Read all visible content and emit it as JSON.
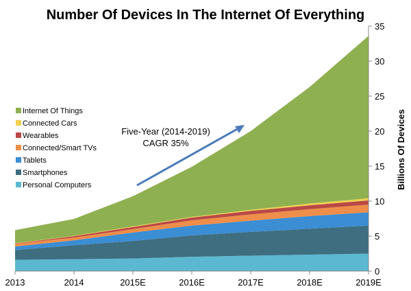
{
  "chart_data": {
    "type": "area",
    "stacked": true,
    "title": "Number Of Devices In The Internet Of Everything",
    "xlabel": "",
    "ylabel": "Billions Of Devices",
    "y_axis_position": "right",
    "ylim": [
      0,
      35
    ],
    "yticks": [
      0,
      5,
      10,
      15,
      20,
      25,
      30,
      35
    ],
    "grid": false,
    "legend_position": "left",
    "categories": [
      "2013",
      "2014",
      "2015E",
      "2016E",
      "2017E",
      "2018E",
      "2019E"
    ],
    "series": [
      {
        "name": "Personal Computers",
        "color": "#5bb8d0",
        "values": [
          1.6,
          1.7,
          1.8,
          2.05,
          2.2,
          2.35,
          2.5
        ]
      },
      {
        "name": "Smartphones",
        "color": "#3e6e80",
        "values": [
          1.4,
          2.0,
          2.5,
          3.05,
          3.4,
          3.7,
          4.0
        ]
      },
      {
        "name": "Tablets",
        "color": "#3b8dd4",
        "values": [
          0.5,
          0.7,
          1.2,
          1.4,
          1.6,
          1.8,
          1.9
        ]
      },
      {
        "name": "Connected/Smart TVs",
        "color": "#ee8e4a",
        "values": [
          0.4,
          0.4,
          0.5,
          0.75,
          0.9,
          1.0,
          1.1
        ]
      },
      {
        "name": "Wearables",
        "color": "#b94845",
        "values": [
          0.05,
          0.2,
          0.3,
          0.4,
          0.5,
          0.55,
          0.6
        ]
      },
      {
        "name": "Connected Cars",
        "color": "#f0d050",
        "values": [
          0.05,
          0.05,
          0.1,
          0.1,
          0.15,
          0.25,
          0.3
        ]
      },
      {
        "name": "Internet Of Things",
        "color": "#8fb050",
        "values": [
          1.85,
          2.4,
          4.3,
          7.15,
          11.25,
          16.65,
          23.2
        ]
      }
    ],
    "annotation": {
      "lines": [
        "Five-Year (2014-2019)",
        "CAGR 35%"
      ],
      "arrow_color": "#4a7ab8"
    }
  }
}
